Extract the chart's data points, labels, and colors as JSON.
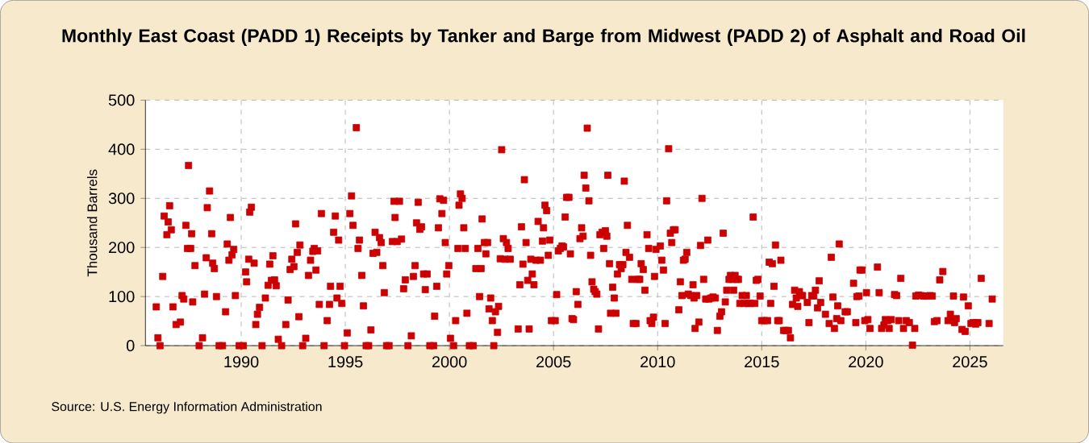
{
  "chart_data": {
    "type": "scatter",
    "title": "Monthly East Coast (PADD 1) Receipts by Tanker and Barge from Midwest (PADD 2) of Asphalt and Road Oil",
    "ylabel": "Thousand Barrels",
    "annotations": [
      "Source: U.S. Energy Information Administration"
    ],
    "color": "#cc0000",
    "marker": "square",
    "grid": true,
    "xlim": [
      1985.4,
      2026.6
    ],
    "ylim": [
      0,
      500
    ],
    "xticks": [
      1990,
      1995,
      2000,
      2005,
      2010,
      2015,
      2020,
      2025
    ],
    "yticks": [
      0,
      100,
      200,
      300,
      400,
      500
    ],
    "x": [
      1985.92,
      1986.0,
      1986.1,
      1986.23,
      1986.3,
      1986.43,
      1986.49,
      1986.56,
      1986.64,
      1986.72,
      1986.87,
      1987.08,
      1987.16,
      1987.24,
      1987.34,
      1987.42,
      1987.47,
      1987.57,
      1987.62,
      1987.67,
      1987.78,
      1987.98,
      1988.14,
      1988.24,
      1988.32,
      1988.37,
      1988.48,
      1988.58,
      1988.63,
      1988.71,
      1988.81,
      1988.94,
      1989.1,
      1989.25,
      1989.33,
      1989.41,
      1989.48,
      1989.56,
      1989.64,
      1989.72,
      1989.9,
      1990.1,
      1990.21,
      1990.26,
      1990.36,
      1990.41,
      1990.49,
      1990.62,
      1990.7,
      1990.78,
      1990.88,
      1991.0,
      1991.16,
      1991.29,
      1991.37,
      1991.45,
      1991.52,
      1991.6,
      1991.68,
      1991.78,
      1991.94,
      1992.14,
      1992.25,
      1992.35,
      1992.43,
      1992.53,
      1992.61,
      1992.69,
      1992.77,
      1992.82,
      1992.95,
      1993.1,
      1993.23,
      1993.33,
      1993.44,
      1993.51,
      1993.59,
      1993.67,
      1993.75,
      1993.85,
      1993.98,
      1994.13,
      1994.24,
      1994.29,
      1994.44,
      1994.52,
      1994.6,
      1994.68,
      1994.75,
      1994.83,
      1994.96,
      1995.09,
      1995.22,
      1995.3,
      1995.37,
      1995.53,
      1995.61,
      1995.68,
      1995.79,
      1995.87,
      1996.0,
      1996.12,
      1996.23,
      1996.33,
      1996.43,
      1996.51,
      1996.64,
      1996.72,
      1996.8,
      1996.87,
      1996.98,
      1997.1,
      1997.26,
      1997.34,
      1997.39,
      1997.49,
      1997.6,
      1997.7,
      1997.8,
      1997.88,
      1998.01,
      1998.17,
      1998.27,
      1998.35,
      1998.42,
      1998.5,
      1998.58,
      1998.66,
      1998.76,
      1998.84,
      1998.93,
      1999.06,
      1999.24,
      1999.29,
      1999.39,
      1999.47,
      1999.54,
      1999.64,
      1999.72,
      1999.8,
      1999.87,
      1999.97,
      2000.05,
      2000.2,
      2000.3,
      2000.41,
      2000.46,
      2000.53,
      2000.61,
      2000.69,
      2000.76,
      2000.84,
      2000.96,
      2001.14,
      2001.27,
      2001.37,
      2001.45,
      2001.52,
      2001.57,
      2001.68,
      2001.75,
      2001.83,
      2001.9,
      2001.98,
      2002.06,
      2002.13,
      2002.21,
      2002.31,
      2002.36,
      2002.44,
      2002.51,
      2002.59,
      2002.66,
      2002.74,
      2002.82,
      2002.92,
      2003.3,
      2003.38,
      2003.46,
      2003.53,
      2003.6,
      2003.68,
      2003.76,
      2003.83,
      2003.91,
      2003.98,
      2004.06,
      2004.16,
      2004.26,
      2004.37,
      2004.47,
      2004.52,
      2004.59,
      2004.67,
      2004.75,
      2004.82,
      2004.9,
      2005.08,
      2005.15,
      2005.23,
      2005.33,
      2005.41,
      2005.48,
      2005.56,
      2005.63,
      2005.74,
      2005.81,
      2005.89,
      2005.96,
      2006.09,
      2006.17,
      2006.27,
      2006.35,
      2006.42,
      2006.47,
      2006.55,
      2006.62,
      2006.7,
      2006.78,
      2006.85,
      2006.93,
      2007.0,
      2007.08,
      2007.16,
      2007.23,
      2007.34,
      2007.41,
      2007.49,
      2007.56,
      2007.61,
      2007.69,
      2007.74,
      2007.84,
      2007.92,
      2008.0,
      2008.07,
      2008.17,
      2008.25,
      2008.33,
      2008.4,
      2008.48,
      2008.55,
      2008.65,
      2008.76,
      2008.83,
      2008.96,
      2009.06,
      2009.14,
      2009.21,
      2009.31,
      2009.39,
      2009.49,
      2009.57,
      2009.64,
      2009.72,
      2009.8,
      2009.85,
      2009.92,
      2010.13,
      2010.2,
      2010.28,
      2010.36,
      2010.43,
      2010.53,
      2010.61,
      2010.68,
      2010.76,
      2010.84,
      2011.02,
      2011.09,
      2011.17,
      2011.24,
      2011.32,
      2011.4,
      2011.47,
      2011.6,
      2011.7,
      2011.75,
      2011.8,
      2011.88,
      2011.98,
      2012.06,
      2012.13,
      2012.21,
      2012.31,
      2012.41,
      2012.46,
      2012.56,
      2012.66,
      2012.77,
      2012.87,
      2012.99,
      2013.07,
      2013.15,
      2013.25,
      2013.32,
      2013.43,
      2013.5,
      2013.58,
      2013.65,
      2013.72,
      2013.8,
      2013.88,
      2013.95,
      2014.06,
      2014.16,
      2014.26,
      2014.36,
      2014.46,
      2014.59,
      2014.67,
      2014.74,
      2014.82,
      2014.92,
      2015.0,
      2015.13,
      2015.28,
      2015.36,
      2015.43,
      2015.51,
      2015.59,
      2015.66,
      2015.77,
      2015.84,
      2015.92,
      2016.05,
      2016.15,
      2016.28,
      2016.38,
      2016.48,
      2016.58,
      2016.66,
      2016.73,
      2016.81,
      2016.89,
      2016.96,
      2017.19,
      2017.27,
      2017.4,
      2017.5,
      2017.58,
      2017.68,
      2017.76,
      2017.83,
      2018.06,
      2018.24,
      2018.34,
      2018.42,
      2018.49,
      2018.6,
      2018.65,
      2018.72,
      2018.8,
      2019.01,
      2019.11,
      2019.41,
      2019.52,
      2019.57,
      2019.67,
      2019.72,
      2019.82,
      2019.95,
      2020.03,
      2020.1,
      2020.2,
      2020.56,
      2020.64,
      2020.76,
      2020.87,
      2020.94,
      2021.05,
      2021.12,
      2021.22,
      2021.38,
      2021.48,
      2021.58,
      2021.68,
      2021.81,
      2021.94,
      2022.09,
      2022.24,
      2022.35,
      2022.4,
      2022.53,
      2022.65,
      2022.78,
      2022.91,
      2023.09,
      2023.19,
      2023.29,
      2023.42,
      2023.55,
      2023.7,
      2023.95,
      2024.06,
      2024.16,
      2024.21,
      2024.26,
      2024.34,
      2024.62,
      2024.69,
      2024.77,
      2024.92,
      2025.05,
      2025.15,
      2025.28,
      2025.38,
      2025.54,
      2025.92,
      2026.07
    ],
    "values": [
      79,
      16,
      0,
      141,
      264,
      226,
      252,
      285,
      236,
      79,
      43,
      48,
      102,
      95,
      245,
      198,
      367,
      198,
      228,
      89,
      163,
      0,
      16,
      105,
      179,
      281,
      315,
      228,
      168,
      157,
      100,
      0,
      0,
      69,
      207,
      174,
      261,
      185,
      196,
      102,
      0,
      0,
      150,
      130,
      176,
      272,
      282,
      168,
      43,
      64,
      78,
      0,
      97,
      123,
      166,
      133,
      183,
      134,
      122,
      13,
      0,
      43,
      93,
      155,
      176,
      161,
      248,
      190,
      59,
      205,
      0,
      15,
      143,
      174,
      192,
      198,
      154,
      193,
      84,
      269,
      0,
      51,
      84,
      121,
      231,
      264,
      97,
      215,
      121,
      86,
      0,
      26,
      269,
      305,
      245,
      444,
      198,
      215,
      143,
      81,
      0,
      0,
      32,
      188,
      231,
      190,
      220,
      210,
      163,
      108,
      0,
      0,
      212,
      294,
      261,
      212,
      294,
      217,
      116,
      134,
      0,
      20,
      141,
      163,
      250,
      292,
      237,
      242,
      146,
      114,
      146,
      0,
      0,
      60,
      121,
      240,
      299,
      269,
      296,
      210,
      146,
      163,
      15,
      0,
      51,
      198,
      286,
      309,
      300,
      240,
      198,
      66,
      0,
      0,
      157,
      198,
      100,
      157,
      258,
      210,
      187,
      210,
      75,
      97,
      51,
      0,
      69,
      27,
      80,
      177,
      399,
      218,
      176,
      210,
      198,
      176,
      34,
      124,
      242,
      166,
      338,
      210,
      133,
      34,
      176,
      146,
      124,
      174,
      253,
      174,
      213,
      240,
      286,
      275,
      184,
      215,
      51,
      51,
      104,
      193,
      198,
      203,
      201,
      262,
      302,
      302,
      187,
      55,
      53,
      110,
      84,
      218,
      240,
      223,
      347,
      321,
      443,
      295,
      184,
      130,
      115,
      110,
      105,
      34,
      226,
      231,
      198,
      234,
      223,
      347,
      167,
      66,
      119,
      97,
      66,
      146,
      165,
      157,
      165,
      335,
      190,
      245,
      180,
      135,
      45,
      45,
      135,
      135,
      167,
      155,
      113,
      226,
      198,
      51,
      45,
      58,
      141,
      196,
      203,
      174,
      154,
      45,
      295,
      401,
      229,
      210,
      236,
      236,
      73,
      130,
      102,
      174,
      176,
      190,
      105,
      102,
      124,
      97,
      35,
      102,
      48,
      204,
      300,
      135,
      95,
      215,
      95,
      97,
      99,
      97,
      31,
      60,
      69,
      229,
      89,
      113,
      135,
      143,
      135,
      113,
      143,
      135,
      135,
      86,
      102,
      86,
      102,
      86,
      86,
      262,
      86,
      133,
      135,
      101,
      51,
      51,
      51,
      170,
      86,
      167,
      121,
      205,
      51,
      51,
      174,
      31,
      31,
      31,
      16,
      84,
      113,
      97,
      80,
      110,
      102,
      102,
      88,
      47,
      102,
      101,
      113,
      77,
      132,
      88,
      64,
      45,
      180,
      99,
      35,
      55,
      81,
      207,
      51,
      69,
      69,
      127,
      47,
      100,
      101,
      154,
      154,
      51,
      108,
      53,
      35,
      160,
      108,
      35,
      42,
      53,
      51,
      35,
      53,
      104,
      102,
      51,
      137,
      35,
      51,
      47,
      1,
      35,
      101,
      103,
      102,
      101,
      101,
      102,
      101,
      49,
      51,
      134,
      151,
      51,
      64,
      53,
      101,
      47,
      55,
      33,
      99,
      29,
      81,
      45,
      47,
      44,
      47,
      137,
      45,
      95
    ]
  }
}
